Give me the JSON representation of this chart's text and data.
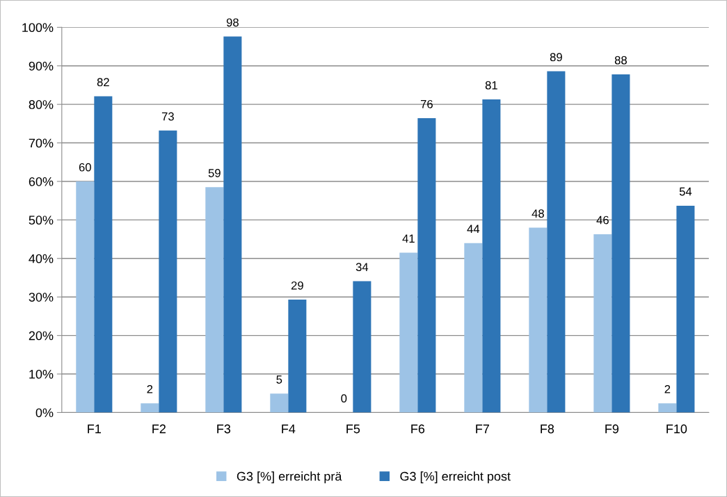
{
  "chart_data": {
    "type": "bar",
    "categories": [
      "F1",
      "F2",
      "F3",
      "F4",
      "F5",
      "F6",
      "F7",
      "F8",
      "F9",
      "F10"
    ],
    "series": [
      {
        "name": "G3 [%] erreicht prä",
        "color": "#9dc3e6",
        "values": [
          60.0,
          2.4,
          58.5,
          4.9,
          0,
          41.5,
          44.0,
          48.0,
          46.3,
          2.4
        ],
        "value_labels": [
          "60",
          "2",
          "59",
          "5",
          "0",
          "41",
          "44",
          "48",
          "46",
          "2"
        ]
      },
      {
        "name": "G3 [%] erreicht post",
        "color": "#2e75b6",
        "values": [
          82.1,
          73.2,
          97.6,
          29.3,
          34.1,
          76.4,
          81.3,
          88.6,
          87.8,
          53.7
        ],
        "value_labels": [
          "82",
          "73",
          "98",
          "29",
          "34",
          "76",
          "81",
          "89",
          "88",
          "54"
        ]
      }
    ],
    "ylim": [
      0,
      100
    ],
    "yticks": [
      {
        "value": 0,
        "label": "0%"
      },
      {
        "value": 10,
        "label": "10%"
      },
      {
        "value": 20,
        "label": "20%"
      },
      {
        "value": 30,
        "label": "30%"
      },
      {
        "value": 40,
        "label": "40%"
      },
      {
        "value": 50,
        "label": "50%"
      },
      {
        "value": 60,
        "label": "60%"
      },
      {
        "value": 70,
        "label": "70%"
      },
      {
        "value": 80,
        "label": "80%"
      },
      {
        "value": 90,
        "label": "90%"
      },
      {
        "value": 100,
        "label": "100%"
      }
    ],
    "grid": "y",
    "legend": "bottom"
  }
}
